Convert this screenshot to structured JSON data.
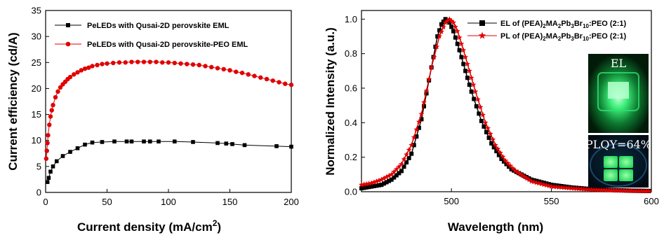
{
  "chart_data": [
    {
      "type": "scatter",
      "xlabel": "Current density (mA/cm",
      "xlabel_sup": "2",
      "xlabel_close": ")",
      "ylabel": "Current efficiency (cd/A)",
      "xlim": [
        0,
        200
      ],
      "ylim": [
        0,
        35
      ],
      "x_ticks": [
        "0",
        "50",
        "100",
        "150",
        "200"
      ],
      "y_ticks": [
        "0",
        "5",
        "10",
        "15",
        "20",
        "25",
        "30",
        "35"
      ],
      "legend_position": "top-left",
      "series": [
        {
          "name": "PeLEDs with Qusai-2D  perovskite EML",
          "marker": "square",
          "color": "#000000",
          "x": [
            1.5,
            2.5,
            4,
            6,
            9,
            14,
            20,
            26,
            32,
            38,
            46,
            56,
            66,
            70,
            80,
            85,
            92,
            105,
            120,
            140,
            147,
            152,
            162,
            188,
            200
          ],
          "y": [
            2.0,
            2.8,
            4.0,
            5.0,
            6.0,
            7.0,
            7.8,
            8.5,
            9.2,
            9.6,
            9.7,
            9.8,
            9.8,
            9.8,
            9.8,
            9.8,
            9.8,
            9.8,
            9.7,
            9.5,
            9.4,
            9.3,
            9.1,
            8.9,
            8.8
          ]
        },
        {
          "name": "PeLEDs with Qusai-2D  perovskite-PEO EML",
          "marker": "circle",
          "color": "#e00000",
          "x": [
            0.5,
            1,
            1.5,
            2,
            3,
            4,
            5,
            6,
            8,
            10,
            12,
            14,
            16,
            18,
            20,
            23,
            26,
            29,
            32,
            35,
            38,
            42,
            46,
            50,
            55,
            60,
            65,
            70,
            75,
            80,
            85,
            90,
            95,
            100,
            105,
            110,
            115,
            120,
            125,
            130,
            135,
            140,
            145,
            150,
            155,
            160,
            165,
            170,
            175,
            180,
            185,
            190,
            195,
            200
          ],
          "y": [
            6.5,
            8.0,
            9.5,
            11.0,
            13.0,
            14.6,
            15.8,
            16.8,
            18.3,
            19.4,
            20.2,
            20.8,
            21.3,
            21.8,
            22.2,
            22.7,
            23.1,
            23.5,
            23.8,
            24.0,
            24.3,
            24.5,
            24.7,
            24.8,
            24.9,
            25.0,
            25.0,
            25.1,
            25.1,
            25.1,
            25.1,
            25.1,
            25.0,
            25.0,
            24.9,
            24.8,
            24.7,
            24.6,
            24.5,
            24.3,
            24.1,
            23.9,
            23.7,
            23.5,
            23.2,
            23.0,
            22.7,
            22.4,
            22.1,
            21.8,
            21.5,
            21.2,
            20.9,
            20.7
          ]
        }
      ]
    },
    {
      "type": "line",
      "xlabel": "Wavelength (nm)",
      "ylabel": "Normalized Intensity (a.u.)",
      "xlim": [
        455,
        600
      ],
      "ylim": [
        0,
        1.05
      ],
      "x_ticks": [
        "500",
        "550",
        "600"
      ],
      "y_ticks": [
        "0.0",
        "0.2",
        "0.4",
        "0.6",
        "0.8",
        "1.0"
      ],
      "legend_position": "top-right",
      "series": [
        {
          "name": "EL of (PEA)2MA2Pb3Br10:PEO (2:1)",
          "name_parts": [
            "EL of (PEA)",
            "2",
            "MA",
            "2",
            "Pb",
            "3",
            "Br",
            "10",
            ":PEO (2:1)"
          ],
          "marker": "square",
          "color": "#000000",
          "peak_nm": 497,
          "fwhm_nm": 20,
          "x": [
            455,
            460,
            465,
            470,
            475,
            480,
            485,
            490,
            493,
            495,
            497,
            499,
            501,
            504,
            507,
            510,
            515,
            520,
            525,
            530,
            540,
            550,
            560,
            570,
            580,
            590,
            600
          ],
          "y": [
            0.02,
            0.03,
            0.04,
            0.07,
            0.12,
            0.22,
            0.42,
            0.72,
            0.9,
            0.97,
            1.0,
            0.98,
            0.93,
            0.82,
            0.7,
            0.58,
            0.41,
            0.28,
            0.19,
            0.13,
            0.07,
            0.04,
            0.025,
            0.015,
            0.01,
            0.006,
            0.004
          ]
        },
        {
          "name": "PL of (PEA)2MA2Pb3Br10:PEO (2:1)",
          "name_parts": [
            "PL of (PEA)",
            "2",
            "MA",
            "2",
            "Pb",
            "3",
            "Br",
            "10",
            ":PEO (2:1)"
          ],
          "marker": "star",
          "color": "#e00000",
          "peak_nm": 499,
          "fwhm_nm": 21,
          "x": [
            455,
            460,
            465,
            470,
            475,
            480,
            485,
            490,
            494,
            497,
            499,
            501,
            503,
            506,
            509,
            512,
            517,
            522,
            527,
            532,
            540,
            550,
            560,
            570,
            580,
            590,
            600
          ],
          "y": [
            0.04,
            0.05,
            0.07,
            0.1,
            0.16,
            0.27,
            0.45,
            0.72,
            0.9,
            0.98,
            1.0,
            0.98,
            0.93,
            0.82,
            0.7,
            0.58,
            0.4,
            0.27,
            0.18,
            0.12,
            0.06,
            0.03,
            0.02,
            0.012,
            0.008,
            0.005,
            0.003
          ]
        }
      ],
      "insets": [
        {
          "label": "EL",
          "color": "#1ecf5a"
        },
        {
          "label": "PLQY=64%",
          "color": "#22e070"
        }
      ]
    }
  ]
}
